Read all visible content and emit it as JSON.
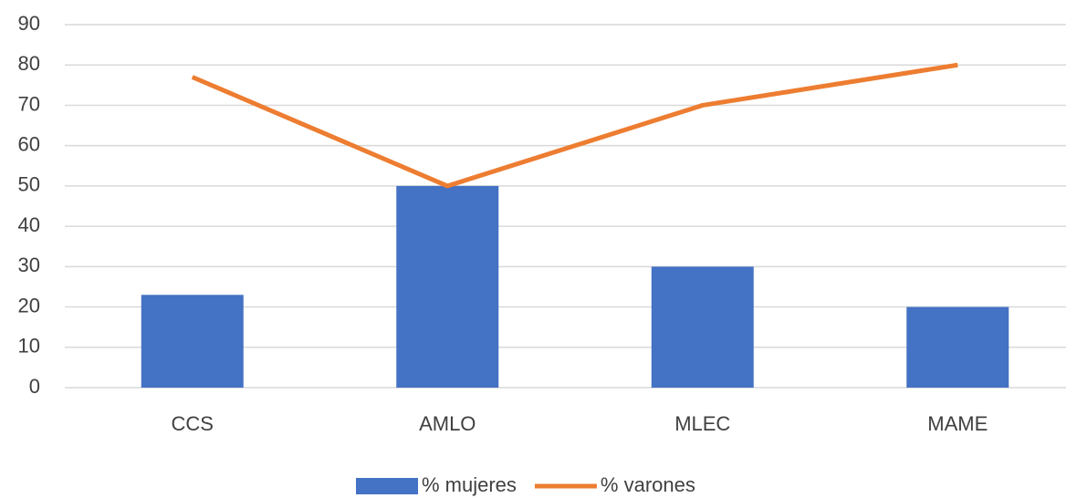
{
  "chart_data": {
    "type": "bar",
    "categories": [
      "CCS",
      "AMLO",
      "MLEC",
      "MAME"
    ],
    "series": [
      {
        "name": "% mujeres",
        "type": "bar",
        "color": "#4472c4",
        "values": [
          23,
          50,
          30,
          20
        ]
      },
      {
        "name": "% varones",
        "type": "line",
        "color": "#ed7d31",
        "values": [
          77,
          50,
          70,
          80
        ]
      }
    ],
    "ylim": [
      0,
      90
    ],
    "yticks": [
      0,
      10,
      20,
      30,
      40,
      50,
      60,
      70,
      80,
      90
    ],
    "grid": true,
    "legend": "bottom"
  }
}
